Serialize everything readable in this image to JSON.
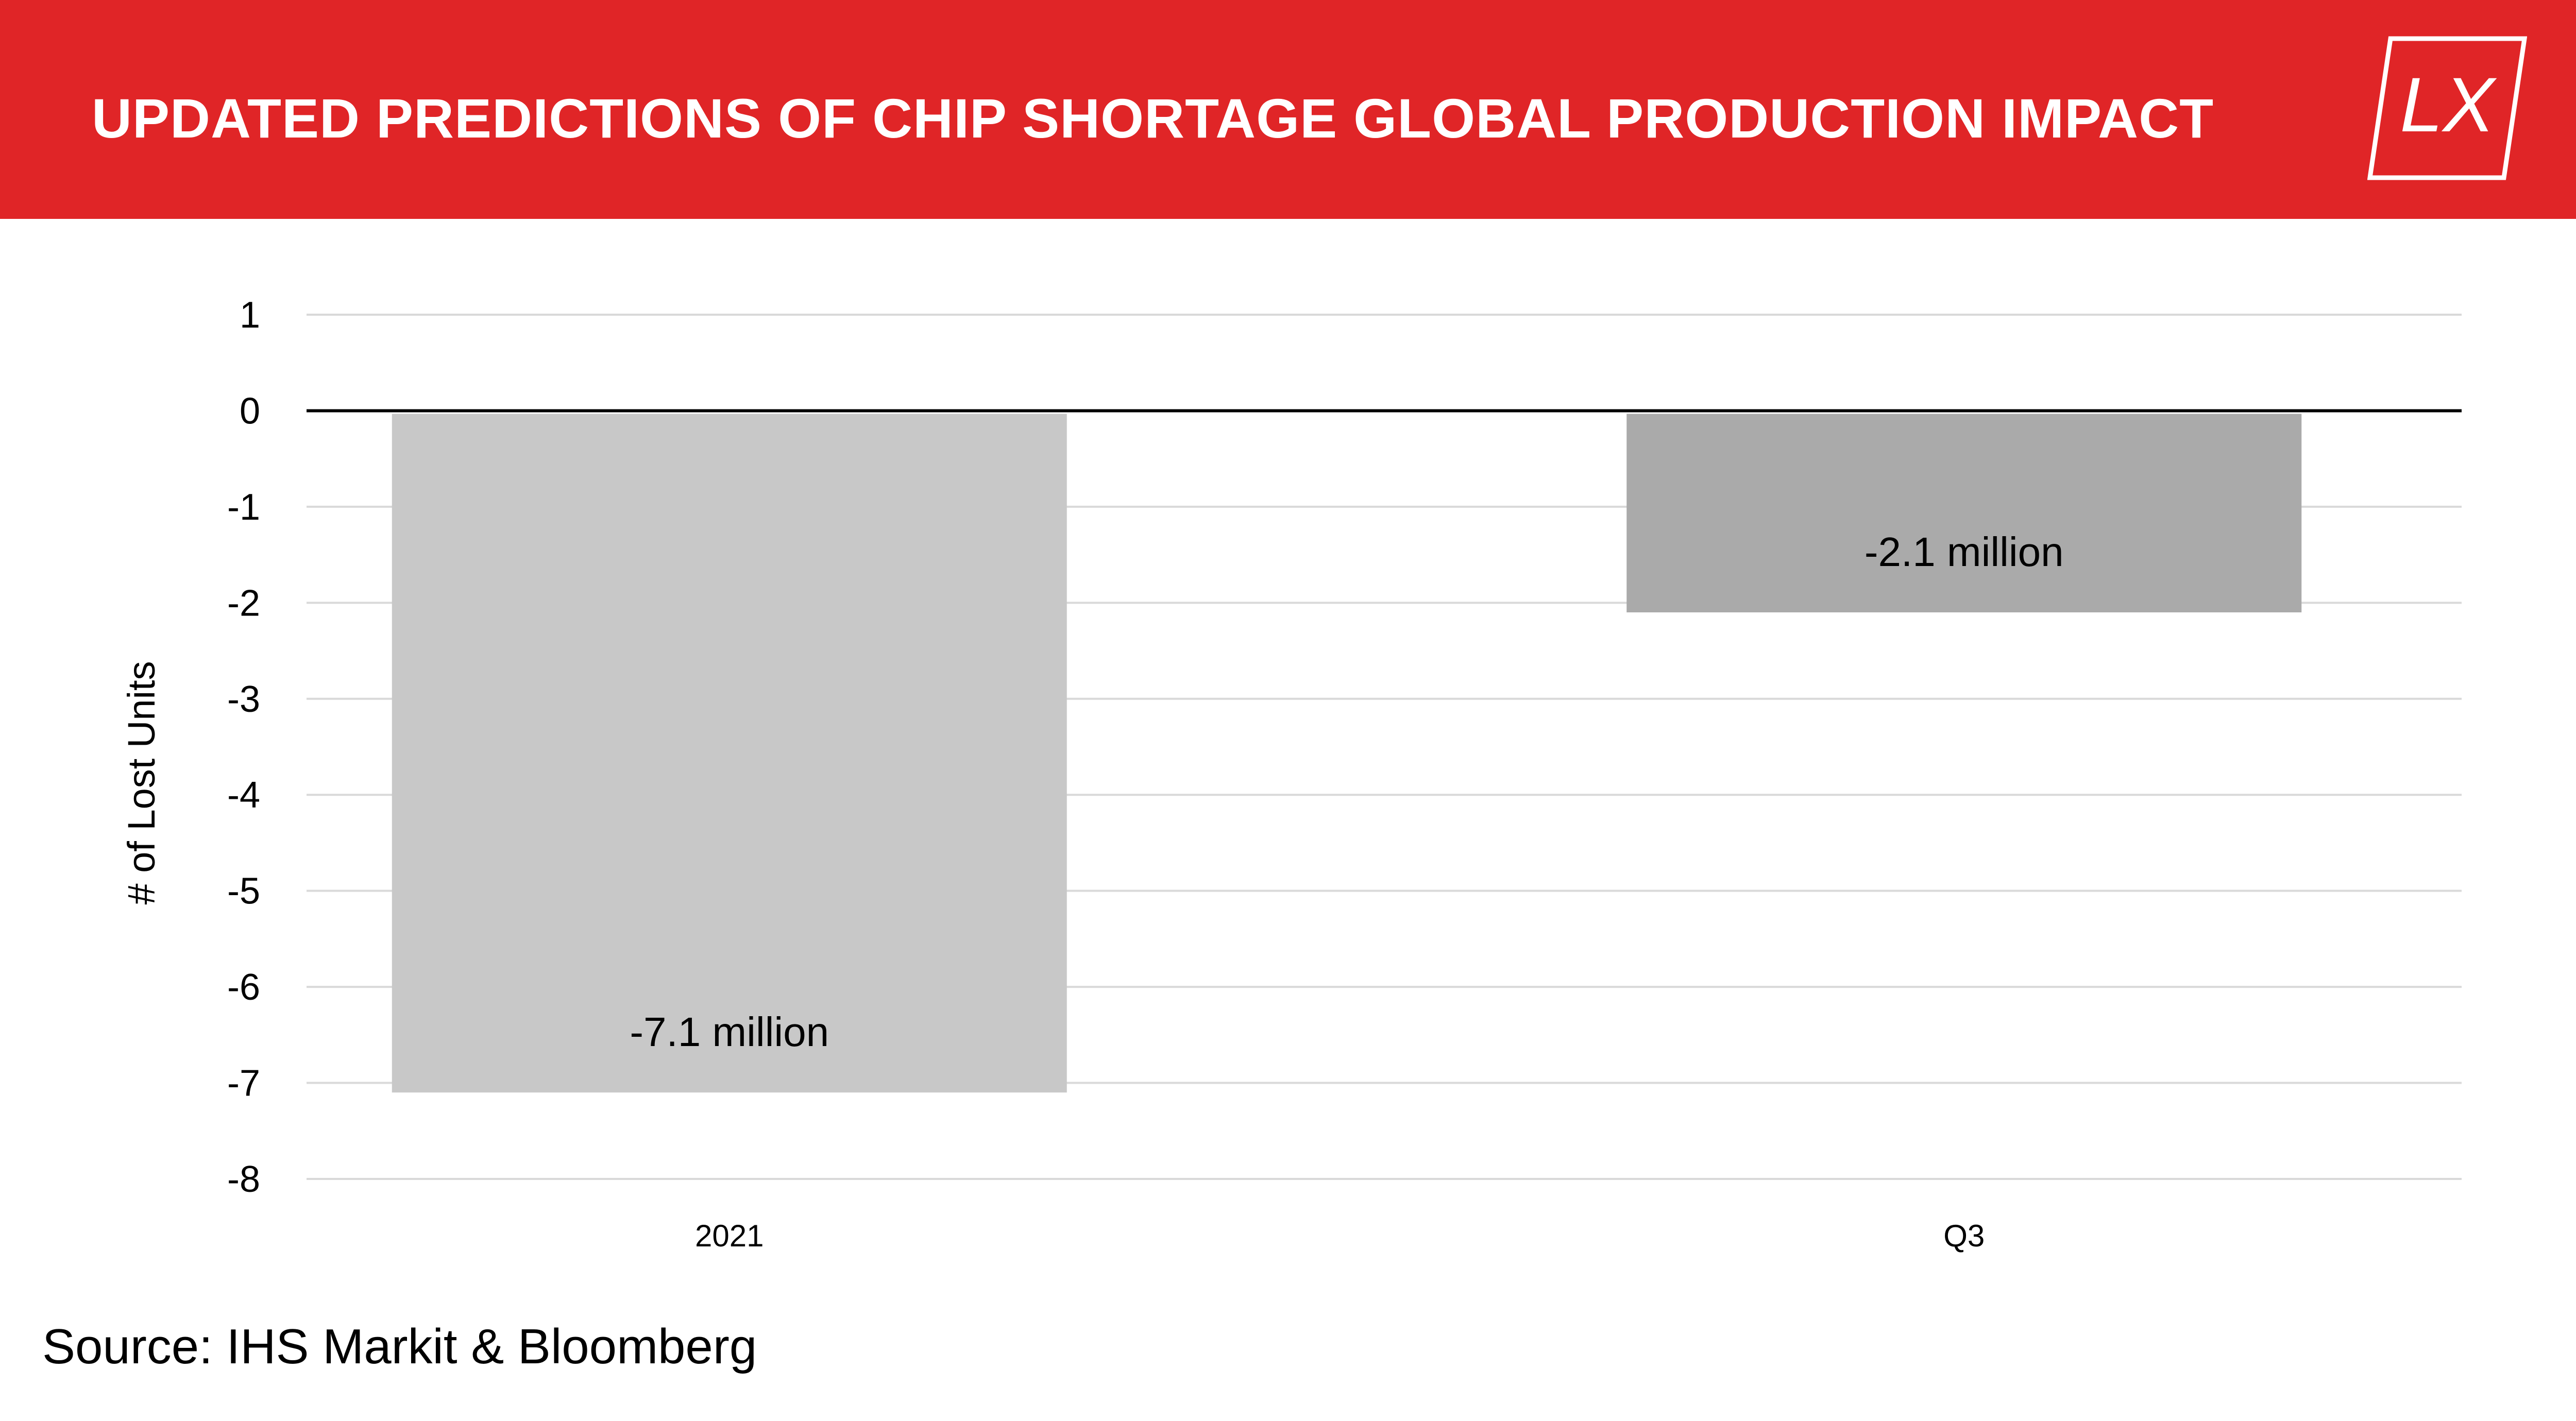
{
  "header": {
    "title": "UPDATED PREDICTIONS OF CHIP SHORTAGE GLOBAL PRODUCTION IMPACT",
    "logo_text": "LX",
    "background_color": "#e02527"
  },
  "chart_data": {
    "type": "bar",
    "categories": [
      "2021",
      "Q3"
    ],
    "values": [
      -7.1,
      -2.1
    ],
    "data_labels": [
      "-7.1 million",
      "-2.1 million"
    ],
    "bar_colors": [
      "#c8c8c8",
      "#aaaaaa"
    ],
    "ylabel": "# of Lost Units",
    "xlabel": "",
    "ylim": [
      -8,
      1
    ],
    "yticks": [
      1,
      0,
      -1,
      -2,
      -3,
      -4,
      -5,
      -6,
      -7,
      -8
    ],
    "grid": true
  },
  "source": "Source: IHS Markit & Bloomberg"
}
